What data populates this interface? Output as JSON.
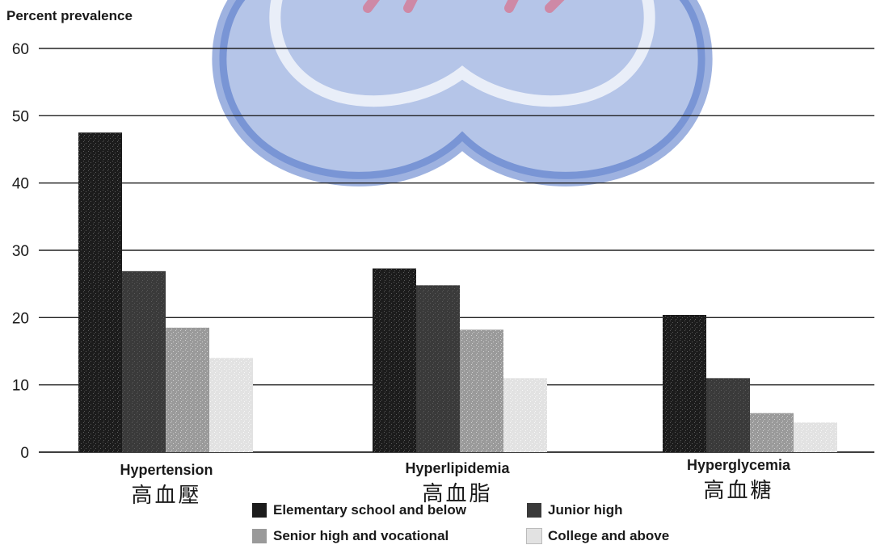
{
  "chart_data": {
    "type": "bar",
    "ylabel": "Percent prevalence",
    "ylim": [
      0,
      60
    ],
    "yticks": [
      "0",
      "10",
      "20",
      "30",
      "40",
      "50",
      "60"
    ],
    "grid": true,
    "legend_position": "bottom",
    "categories": [
      {
        "en": "Hypertension",
        "zh": "高血壓"
      },
      {
        "en": "Hyperlipidemia",
        "zh": "高血脂"
      },
      {
        "en": "Hyperglycemia",
        "zh": "高血糖"
      }
    ],
    "series": [
      {
        "name": "Elementary school and below",
        "values": [
          47.5,
          27.3,
          20.4
        ],
        "color": "#1c1c1c"
      },
      {
        "name": "Junior high",
        "values": [
          26.9,
          24.8,
          11.0
        ],
        "color": "#3a3a3a"
      },
      {
        "name": "Senior high and vocational",
        "values": [
          18.5,
          18.2,
          5.8
        ],
        "color": "#9a9a9a"
      },
      {
        "name": "College and above",
        "values": [
          14.0,
          11.0,
          4.4
        ],
        "color": "#e2e2e2"
      }
    ]
  },
  "colors": {
    "watermark_blue": "#3d66c2",
    "watermark_red": "#e0607a",
    "axis": "#222222"
  }
}
